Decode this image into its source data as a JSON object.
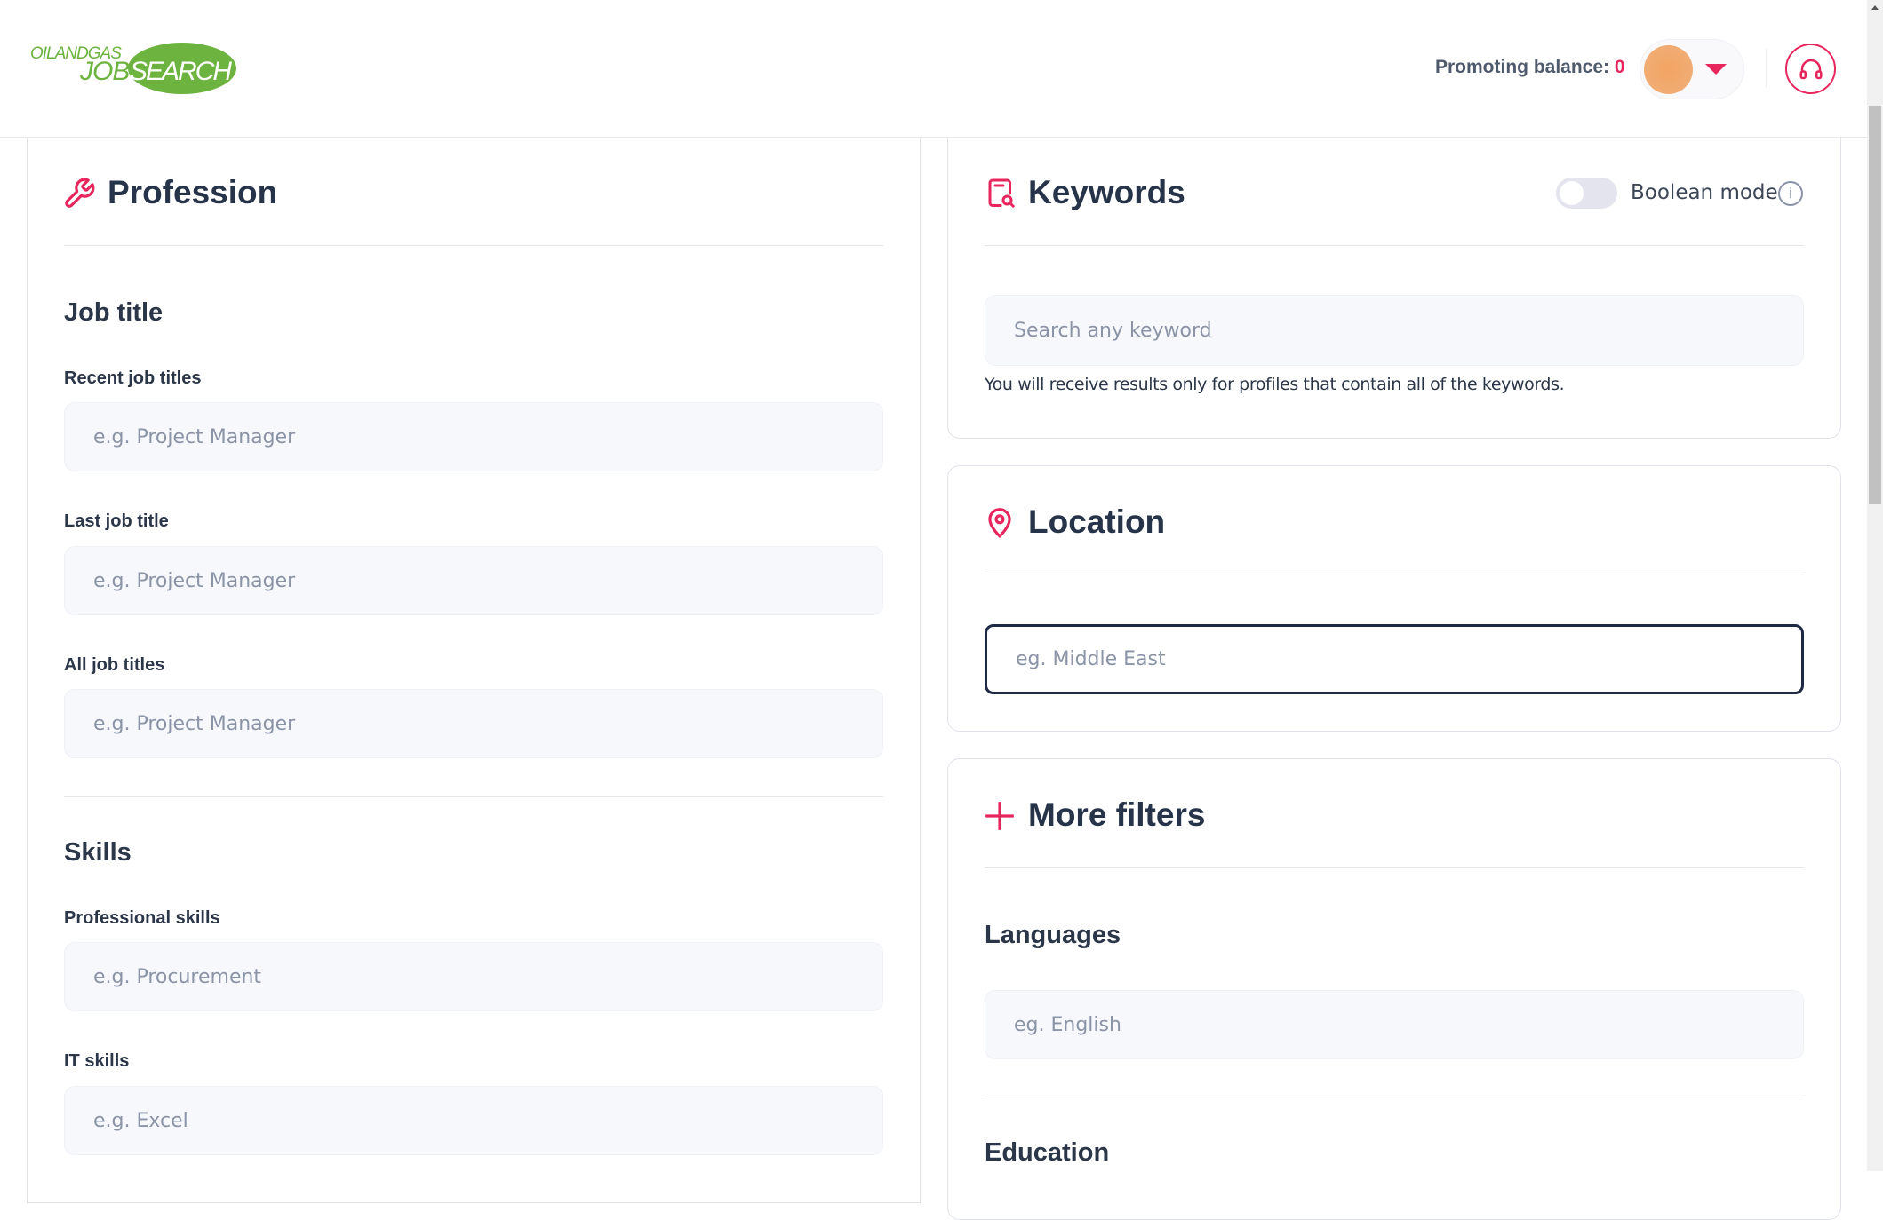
{
  "header": {
    "logo_text_top": "OILANDGAS",
    "logo_text_job": "JOB",
    "logo_text_search": "SEARCH",
    "promoting_label": "Promoting balance:",
    "promoting_value": "0",
    "accent": "#e8265e"
  },
  "profession": {
    "title": "Profession",
    "job_title_heading": "Job title",
    "fields": [
      {
        "label": "Recent job titles",
        "placeholder": "e.g. Project Manager"
      },
      {
        "label": "Last job title",
        "placeholder": "e.g. Project Manager"
      },
      {
        "label": "All job titles",
        "placeholder": "e.g. Project Manager"
      }
    ],
    "skills_heading": "Skills",
    "skill_fields": [
      {
        "label": "Professional skills",
        "placeholder": "e.g. Procurement"
      },
      {
        "label": "IT skills",
        "placeholder": "e.g. Excel"
      }
    ]
  },
  "keywords": {
    "title": "Keywords",
    "boolean_label": "Boolean mode",
    "boolean_on": false,
    "placeholder": "Search any keyword",
    "helper": "You will receive results only for profiles that contain all of the keywords."
  },
  "location": {
    "title": "Location",
    "placeholder": "eg. Middle East"
  },
  "more_filters": {
    "title": "More filters",
    "languages_heading": "Languages",
    "languages_placeholder": "eg. English",
    "education_heading": "Education"
  }
}
